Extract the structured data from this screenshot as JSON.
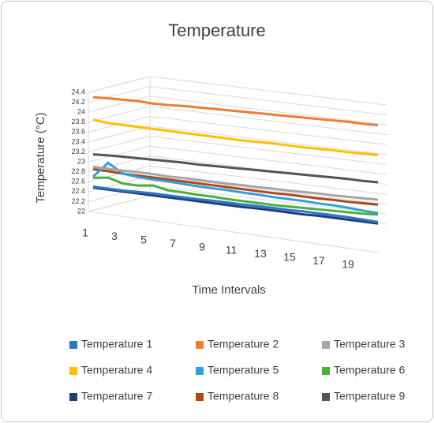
{
  "chart_data": {
    "type": "line3d",
    "title": "Temperature",
    "x_label": "Time Intervals",
    "y_label": "Temperature (°C)",
    "categories": [
      "1",
      null,
      "3",
      null,
      "5",
      null,
      "7",
      null,
      "9",
      null,
      "11",
      null,
      "13",
      null,
      "15",
      null,
      "17",
      null,
      "19",
      null
    ],
    "ylim": [
      22,
      24.4
    ],
    "yticks": [
      22,
      22.2,
      22.4,
      22.6,
      22.8,
      23,
      23.2,
      23.4,
      23.6,
      23.8,
      24,
      24.2,
      24.4
    ],
    "grid": true,
    "legend": "bottom",
    "series": [
      {
        "name": "Temperature 1",
        "color": "#2e75c5",
        "values": [
          22.5,
          22.48,
          22.46,
          22.45,
          22.44,
          22.42,
          22.4,
          22.38,
          22.37,
          22.35,
          22.33,
          22.32,
          22.3,
          22.28,
          22.27,
          22.25,
          22.23,
          22.21,
          22.18,
          22.15
        ]
      },
      {
        "name": "Temperature 2",
        "color": "#ed7d31",
        "values": [
          24.3,
          24.3,
          24.29,
          24.28,
          24.25,
          24.24,
          24.24,
          24.23,
          24.22,
          24.21,
          24.2,
          24.19,
          24.18,
          24.17,
          24.16,
          24.15,
          24.14,
          24.13,
          24.11,
          24.1
        ]
      },
      {
        "name": "Temperature 3",
        "color": "#a5a5a5",
        "values": [
          22.9,
          22.88,
          22.86,
          22.85,
          22.83,
          22.8,
          22.79,
          22.77,
          22.75,
          22.73,
          22.72,
          22.7,
          22.69,
          22.67,
          22.66,
          22.65,
          22.63,
          22.62,
          22.61,
          22.6
        ]
      },
      {
        "name": "Temperature 4",
        "color": "#ffc000",
        "values": [
          23.85,
          23.8,
          23.78,
          23.76,
          23.74,
          23.72,
          23.7,
          23.68,
          23.66,
          23.64,
          23.62,
          23.61,
          23.6,
          23.58,
          23.56,
          23.55,
          23.54,
          23.52,
          23.51,
          23.5
        ]
      },
      {
        "name": "Temperature 5",
        "color": "#2fa0dc",
        "values": [
          22.7,
          23.0,
          22.8,
          22.75,
          22.72,
          22.7,
          22.67,
          22.64,
          22.62,
          22.6,
          22.57,
          22.55,
          22.52,
          22.5,
          22.48,
          22.45,
          22.43,
          22.4,
          22.36,
          22.33
        ]
      },
      {
        "name": "Temperature 6",
        "color": "#4caf3c",
        "values": [
          22.68,
          22.7,
          22.6,
          22.58,
          22.6,
          22.52,
          22.5,
          22.47,
          22.45,
          22.42,
          22.4,
          22.38,
          22.36,
          22.35,
          22.34,
          22.33,
          22.32,
          22.31,
          22.3,
          22.3
        ]
      },
      {
        "name": "Temperature 7",
        "color": "#1f3f7a",
        "values": [
          22.48,
          22.46,
          22.44,
          22.42,
          22.4,
          22.38,
          22.36,
          22.34,
          22.32,
          22.3,
          22.28,
          22.27,
          22.25,
          22.23,
          22.21,
          22.2,
          22.18,
          22.16,
          22.14,
          22.12
        ]
      },
      {
        "name": "Temperature 8",
        "color": "#b0471a",
        "values": [
          22.85,
          22.83,
          22.8,
          22.78,
          22.76,
          22.74,
          22.72,
          22.7,
          22.68,
          22.66,
          22.64,
          22.62,
          22.6,
          22.59,
          22.57,
          22.55,
          22.54,
          22.52,
          22.51,
          22.5
        ]
      },
      {
        "name": "Temperature 9",
        "color": "#555555",
        "values": [
          23.15,
          23.15,
          23.14,
          23.13,
          23.12,
          23.11,
          23.1,
          23.08,
          23.07,
          23.06,
          23.05,
          23.04,
          23.03,
          23.02,
          23.01,
          23,
          22.99,
          22.98,
          22.96,
          22.95
        ]
      }
    ]
  }
}
